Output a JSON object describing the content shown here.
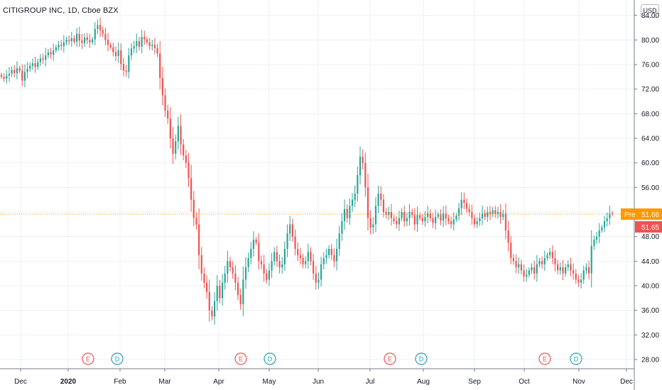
{
  "header": {
    "title": "CITIGROUP INC, 1D, Cboe BZX"
  },
  "currency_button": "USD",
  "colors": {
    "up": "#26a69a",
    "down": "#ef5350",
    "pre_label": "#ff9800",
    "last_label": "#ef5350",
    "grid": "#eef0f3",
    "text": "#131722"
  },
  "chart_data": {
    "type": "candlestick",
    "title": "CITIGROUP INC, 1D, Cboe BZX",
    "x_tick_labels": [
      "Dec",
      "2020",
      "Feb",
      "Mar",
      "Apr",
      "May",
      "Jun",
      "Jul",
      "Aug",
      "Sep",
      "Oct",
      "Nov",
      "Dec"
    ],
    "y_tick_labels": [
      "28.00",
      "32.00",
      "36.00",
      "40.00",
      "44.00",
      "48.00",
      "52.00",
      "56.00",
      "60.00",
      "64.00",
      "68.00",
      "72.00",
      "76.00",
      "80.00",
      "84.00"
    ],
    "ylim": [
      26.5,
      86.5
    ],
    "grid": true,
    "price_labels": {
      "pre": {
        "label": "Pre",
        "value": "51.66"
      },
      "last": {
        "value": "51.65"
      }
    },
    "event_markers": [
      {
        "label": "E",
        "type": "earnings",
        "date": "Jan 14"
      },
      {
        "label": "D",
        "type": "dividend",
        "date": "Jan 31"
      },
      {
        "label": "E",
        "type": "earnings",
        "date": "Apr 15"
      },
      {
        "label": "D",
        "type": "dividend",
        "date": "May 1"
      },
      {
        "label": "E",
        "type": "earnings",
        "date": "Jul 14"
      },
      {
        "label": "D",
        "type": "dividend",
        "date": "Jul 31"
      },
      {
        "label": "E",
        "type": "earnings",
        "date": "Oct 13"
      },
      {
        "label": "D",
        "type": "dividend",
        "date": "Oct 30"
      }
    ],
    "closes": [
      74.0,
      73.7,
      74.2,
      74.5,
      75.1,
      74.6,
      75.4,
      75.0,
      73.4,
      74.8,
      75.3,
      75.8,
      76.2,
      75.6,
      76.4,
      77.0,
      76.8,
      77.5,
      78.0,
      77.6,
      78.3,
      78.8,
      79.2,
      79.0,
      79.6,
      80.0,
      79.8,
      80.3,
      79.7,
      81.0,
      79.9,
      79.5,
      80.4,
      80.0,
      79.6,
      80.1,
      81.8,
      82.4,
      81.6,
      81.0,
      80.0,
      79.2,
      78.8,
      78.0,
      77.4,
      78.3,
      76.1,
      75.0,
      74.8,
      77.5,
      78.6,
      79.0,
      79.8,
      78.9,
      80.5,
      80.1,
      79.6,
      79.0,
      79.2,
      78.7,
      77.8,
      73.8,
      71.0,
      68.5,
      67.2,
      64.0,
      61.5,
      63.5,
      66.0,
      63.0,
      61.2,
      60.0,
      57.5,
      54.0,
      51.0,
      50.0,
      45.0,
      42.0,
      40.5,
      39.0,
      36.0,
      35.0,
      37.5,
      40.0,
      38.0,
      40.5,
      42.0,
      44.0,
      43.0,
      42.0,
      40.5,
      38.5,
      37.0,
      41.0,
      43.0,
      44.5,
      46.0,
      47.5,
      47.0,
      44.0,
      43.5,
      42.0,
      41.0,
      42.5,
      44.0,
      45.5,
      44.0,
      43.0,
      43.5,
      46.0,
      48.5,
      50.0,
      48.0,
      46.0,
      45.0,
      44.5,
      43.5,
      44.0,
      45.5,
      44.0,
      42.0,
      40.5,
      41.0,
      43.5,
      44.5,
      45.0,
      46.0,
      45.0,
      44.0,
      46.0,
      48.5,
      50.5,
      52.5,
      51.0,
      53.0,
      54.0,
      55.0,
      58.0,
      61.0,
      60.0,
      56.0,
      51.0,
      49.5,
      50.0,
      53.0,
      55.0,
      54.0,
      52.0,
      51.5,
      52.0,
      51.0,
      50.5,
      50.0,
      51.0,
      52.0,
      50.5,
      51.0,
      52.0,
      51.5,
      50.0,
      51.5,
      51.0,
      50.5,
      51.2,
      51.8,
      51.0,
      50.2,
      51.2,
      51.6,
      50.6,
      51.8,
      51.0,
      50.5,
      50.0,
      50.8,
      51.4,
      52.6,
      54.0,
      53.5,
      52.5,
      52.0,
      51.0,
      50.0,
      50.5,
      51.0,
      51.8,
      51.2,
      52.0,
      51.6,
      52.3,
      51.7,
      52.0,
      51.2,
      51.8,
      49.0,
      47.0,
      44.5,
      44.0,
      43.0,
      43.5,
      42.5,
      41.5,
      41.8,
      42.5,
      43.0,
      42.0,
      43.5,
      44.0,
      43.5,
      44.5,
      45.0,
      45.5,
      44.5,
      43.5,
      42.5,
      43.0,
      42.0,
      43.0,
      43.5,
      42.5,
      42.0,
      41.0,
      40.5,
      41.0,
      42.5,
      43.0,
      42.0,
      46.5,
      47.5,
      48.0,
      49.0,
      49.5,
      50.5,
      51.0,
      51.8,
      51.65
    ]
  }
}
